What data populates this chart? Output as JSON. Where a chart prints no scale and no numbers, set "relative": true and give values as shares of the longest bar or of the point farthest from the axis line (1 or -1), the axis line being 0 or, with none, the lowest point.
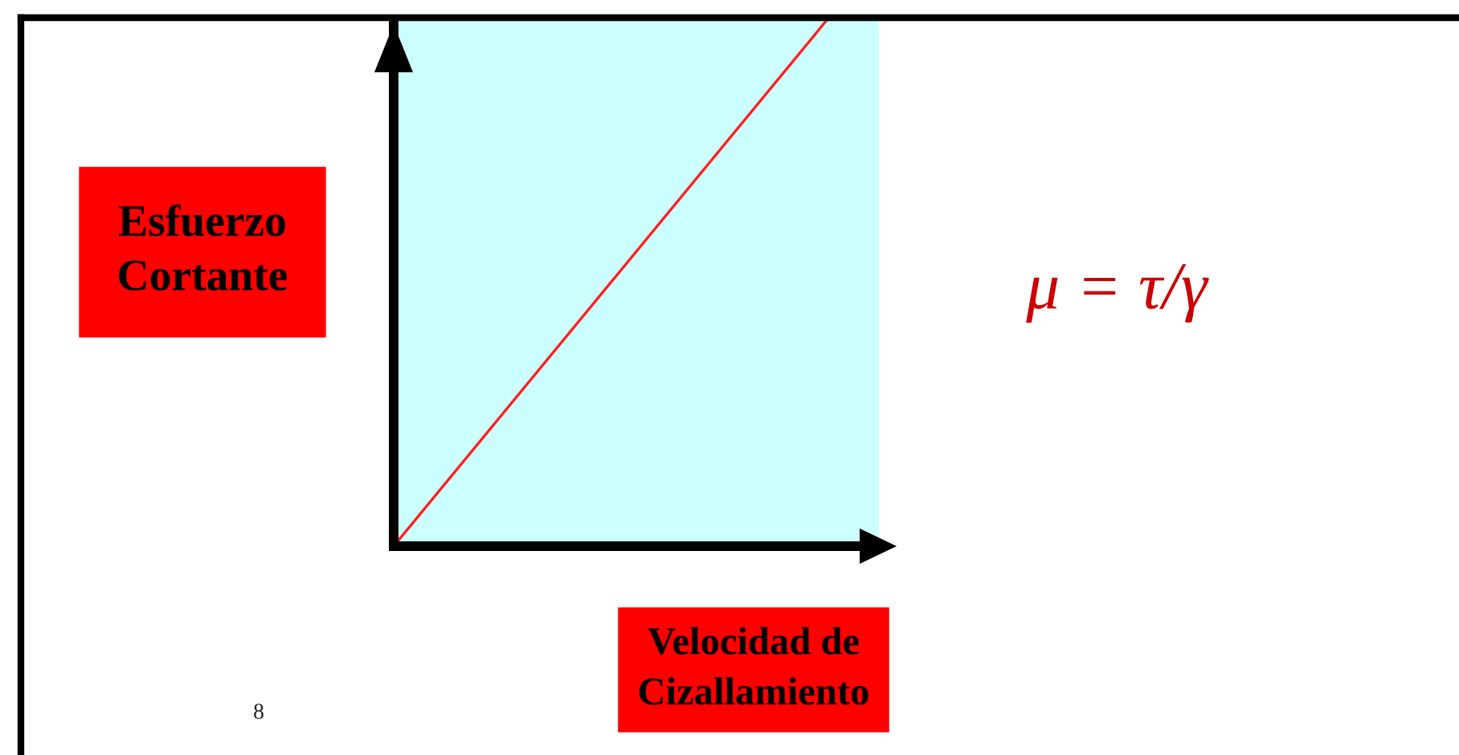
{
  "chart_data": {
    "type": "line",
    "categories": [
      null,
      null
    ],
    "values": [
      0,
      1
    ],
    "color": "#ff2020",
    "relative": true,
    "xlabel": "Velocidad de\nCizallamiento",
    "ylabel": "Esfuerzo\nCortante",
    "annotations": [
      "μ = τ/γ",
      "8"
    ]
  }
}
